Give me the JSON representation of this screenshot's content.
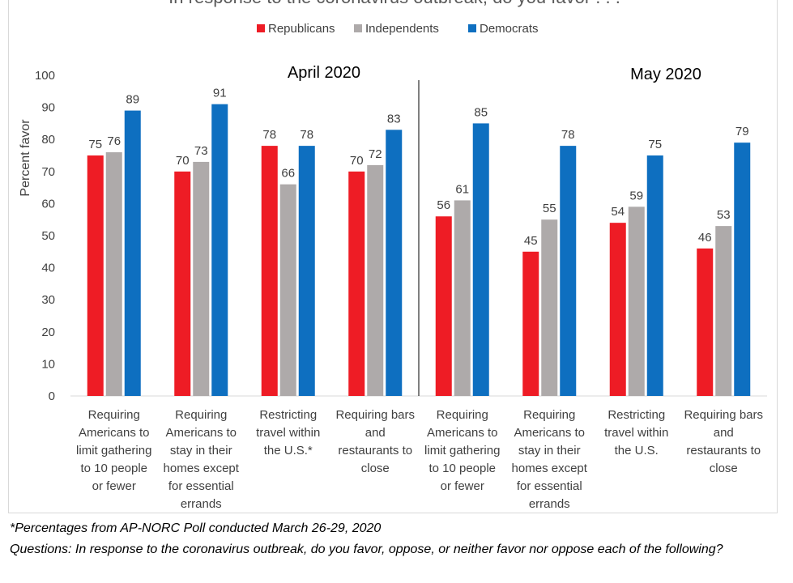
{
  "chart_data": {
    "type": "bar",
    "title": "In response to the coronavirus outbreak, do you favor . . .",
    "ylabel": "Percent favor",
    "ylim": [
      0,
      100
    ],
    "yticks": [
      0,
      10,
      20,
      30,
      40,
      50,
      60,
      70,
      80,
      90,
      100
    ],
    "legend_position": "top-center",
    "periods": [
      {
        "label": "April 2020"
      },
      {
        "label": "May 2020"
      }
    ],
    "categories": [
      [
        "Requiring",
        "Americans to",
        "limit gathering",
        "to 10 people",
        "or fewer"
      ],
      [
        "Requiring",
        "Americans to",
        "stay in their",
        "homes except",
        "for essential",
        "errands"
      ],
      [
        "Restricting",
        "travel within",
        "the U.S.*"
      ],
      [
        "Requiring bars",
        "and",
        "restaurants to",
        "close"
      ],
      [
        "Requiring",
        "Americans to",
        "limit gathering",
        "to 10 people",
        "or fewer"
      ],
      [
        "Requiring",
        "Americans to",
        "stay in their",
        "homes except",
        "for essential",
        "errands"
      ],
      [
        "Restricting",
        "travel within",
        "the U.S."
      ],
      [
        "Requiring bars",
        "and",
        "restaurants to",
        "close"
      ]
    ],
    "series": [
      {
        "name": "Republicans",
        "color": "#ee1c25",
        "values": [
          75,
          70,
          78,
          70,
          56,
          45,
          54,
          46
        ]
      },
      {
        "name": "Independents",
        "color": "#aeaaaa",
        "values": [
          76,
          73,
          66,
          72,
          61,
          55,
          59,
          53
        ]
      },
      {
        "name": "Democrats",
        "color": "#0e6fc0",
        "values": [
          89,
          91,
          78,
          83,
          85,
          78,
          75,
          79
        ]
      }
    ]
  },
  "notes": {
    "footnote": "*Percentages from AP-NORC Poll conducted March 26-29, 2020",
    "question": "Questions: In response to the coronavirus outbreak, do you favor, oppose, or neither favor nor oppose each of the following?"
  }
}
